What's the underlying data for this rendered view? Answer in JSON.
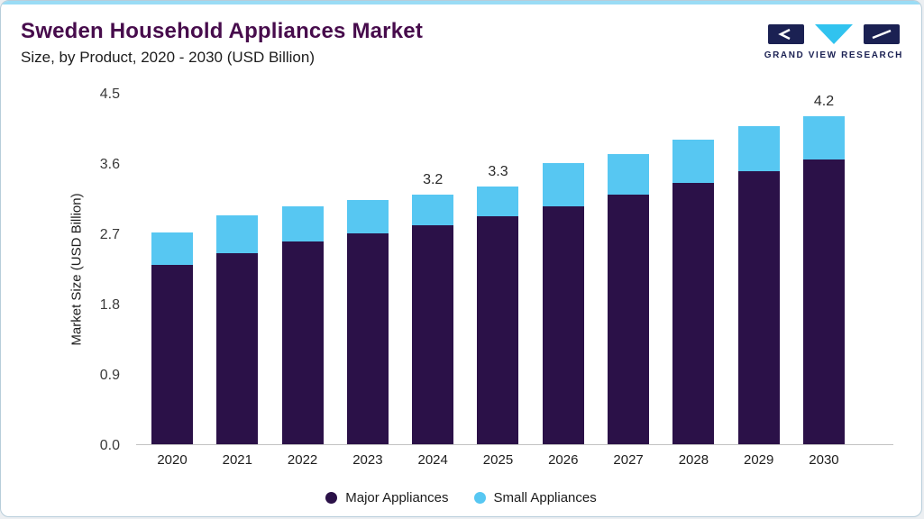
{
  "header": {
    "title": "Sweden Household Appliances Market",
    "subtitle": "Size, by Product, 2020 - 2030 (USD Billion)",
    "logo_text": "GRAND VIEW RESEARCH"
  },
  "colors": {
    "accent": "#9adcf5",
    "title": "#470c4c",
    "logo_navy": "#1b2153",
    "logo_cyan": "#31c3ef"
  },
  "chart_data": {
    "type": "bar",
    "stacked": true,
    "title": "Sweden Household Appliances Market",
    "subtitle": "Size, by Product, 2020 - 2030 (USD Billion)",
    "categories": [
      "2020",
      "2021",
      "2022",
      "2023",
      "2024",
      "2025",
      "2026",
      "2027",
      "2028",
      "2029",
      "2030"
    ],
    "series": [
      {
        "name": "Major Appliances",
        "color": "#2b1148",
        "values": [
          2.3,
          2.45,
          2.6,
          2.7,
          2.8,
          2.92,
          3.05,
          3.2,
          3.35,
          3.5,
          3.65
        ]
      },
      {
        "name": "Small Appliances",
        "color": "#57c7f2",
        "values": [
          0.41,
          0.48,
          0.45,
          0.43,
          0.4,
          0.38,
          0.55,
          0.52,
          0.55,
          0.57,
          0.55
        ]
      }
    ],
    "totals_labeled": {
      "2024": "3.2",
      "2025": "3.3",
      "2030": "4.2"
    },
    "ylabel": "Market Size (USD Billion)",
    "xlabel": "",
    "yticks": [
      0,
      0.9,
      1.8,
      2.7,
      3.6,
      4.5
    ],
    "ylim": [
      0,
      4.5
    ],
    "grid": false,
    "legend_position": "bottom"
  }
}
